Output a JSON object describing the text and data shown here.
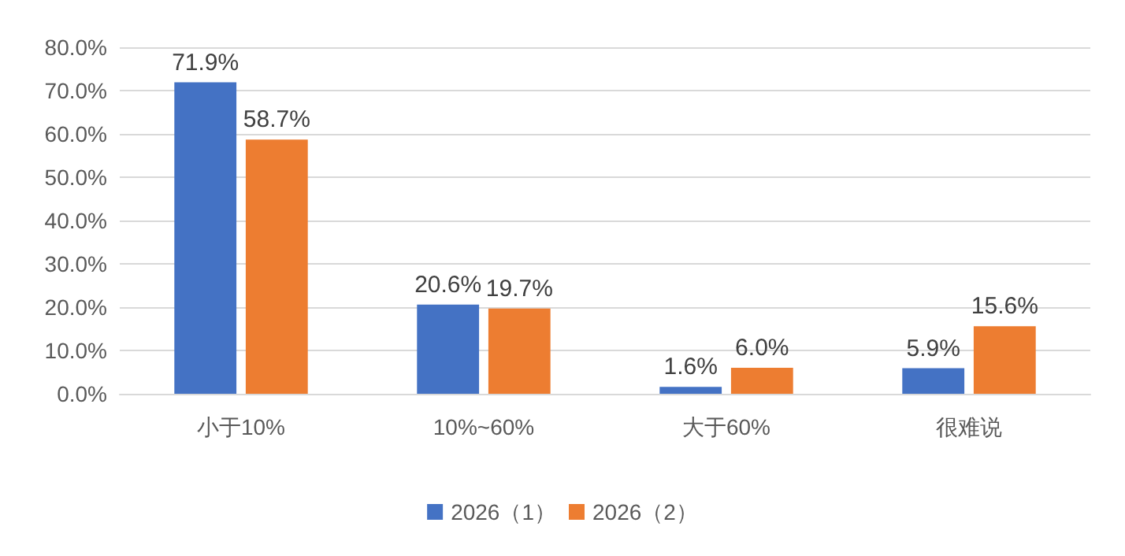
{
  "chart_data": {
    "type": "bar",
    "categories": [
      "小于10%",
      "10%~60%",
      "大于60%",
      "很难说"
    ],
    "series": [
      {
        "name": "2026（1）",
        "color": "#4472c4",
        "values": [
          71.9,
          20.6,
          1.6,
          5.9
        ],
        "value_labels": [
          "71.9%",
          "20.6%",
          "1.6%",
          "5.9%"
        ]
      },
      {
        "name": "2026（2）",
        "color": "#ed7d31",
        "values": [
          58.7,
          19.7,
          6.0,
          15.6
        ],
        "value_labels": [
          "58.7%",
          "19.7%",
          "6.0%",
          "15.6%"
        ]
      }
    ],
    "ylim": [
      0,
      80
    ],
    "yticks": [
      {
        "value": 0,
        "label": "0.0%"
      },
      {
        "value": 10,
        "label": "10.0%"
      },
      {
        "value": 20,
        "label": "20.0%"
      },
      {
        "value": 30,
        "label": "30.0%"
      },
      {
        "value": 40,
        "label": "40.0%"
      },
      {
        "value": 50,
        "label": "50.0%"
      },
      {
        "value": 60,
        "label": "60.0%"
      },
      {
        "value": 70,
        "label": "70.0%"
      },
      {
        "value": 80,
        "label": "80.0%"
      }
    ],
    "grid": "y",
    "legend": "bottom"
  }
}
